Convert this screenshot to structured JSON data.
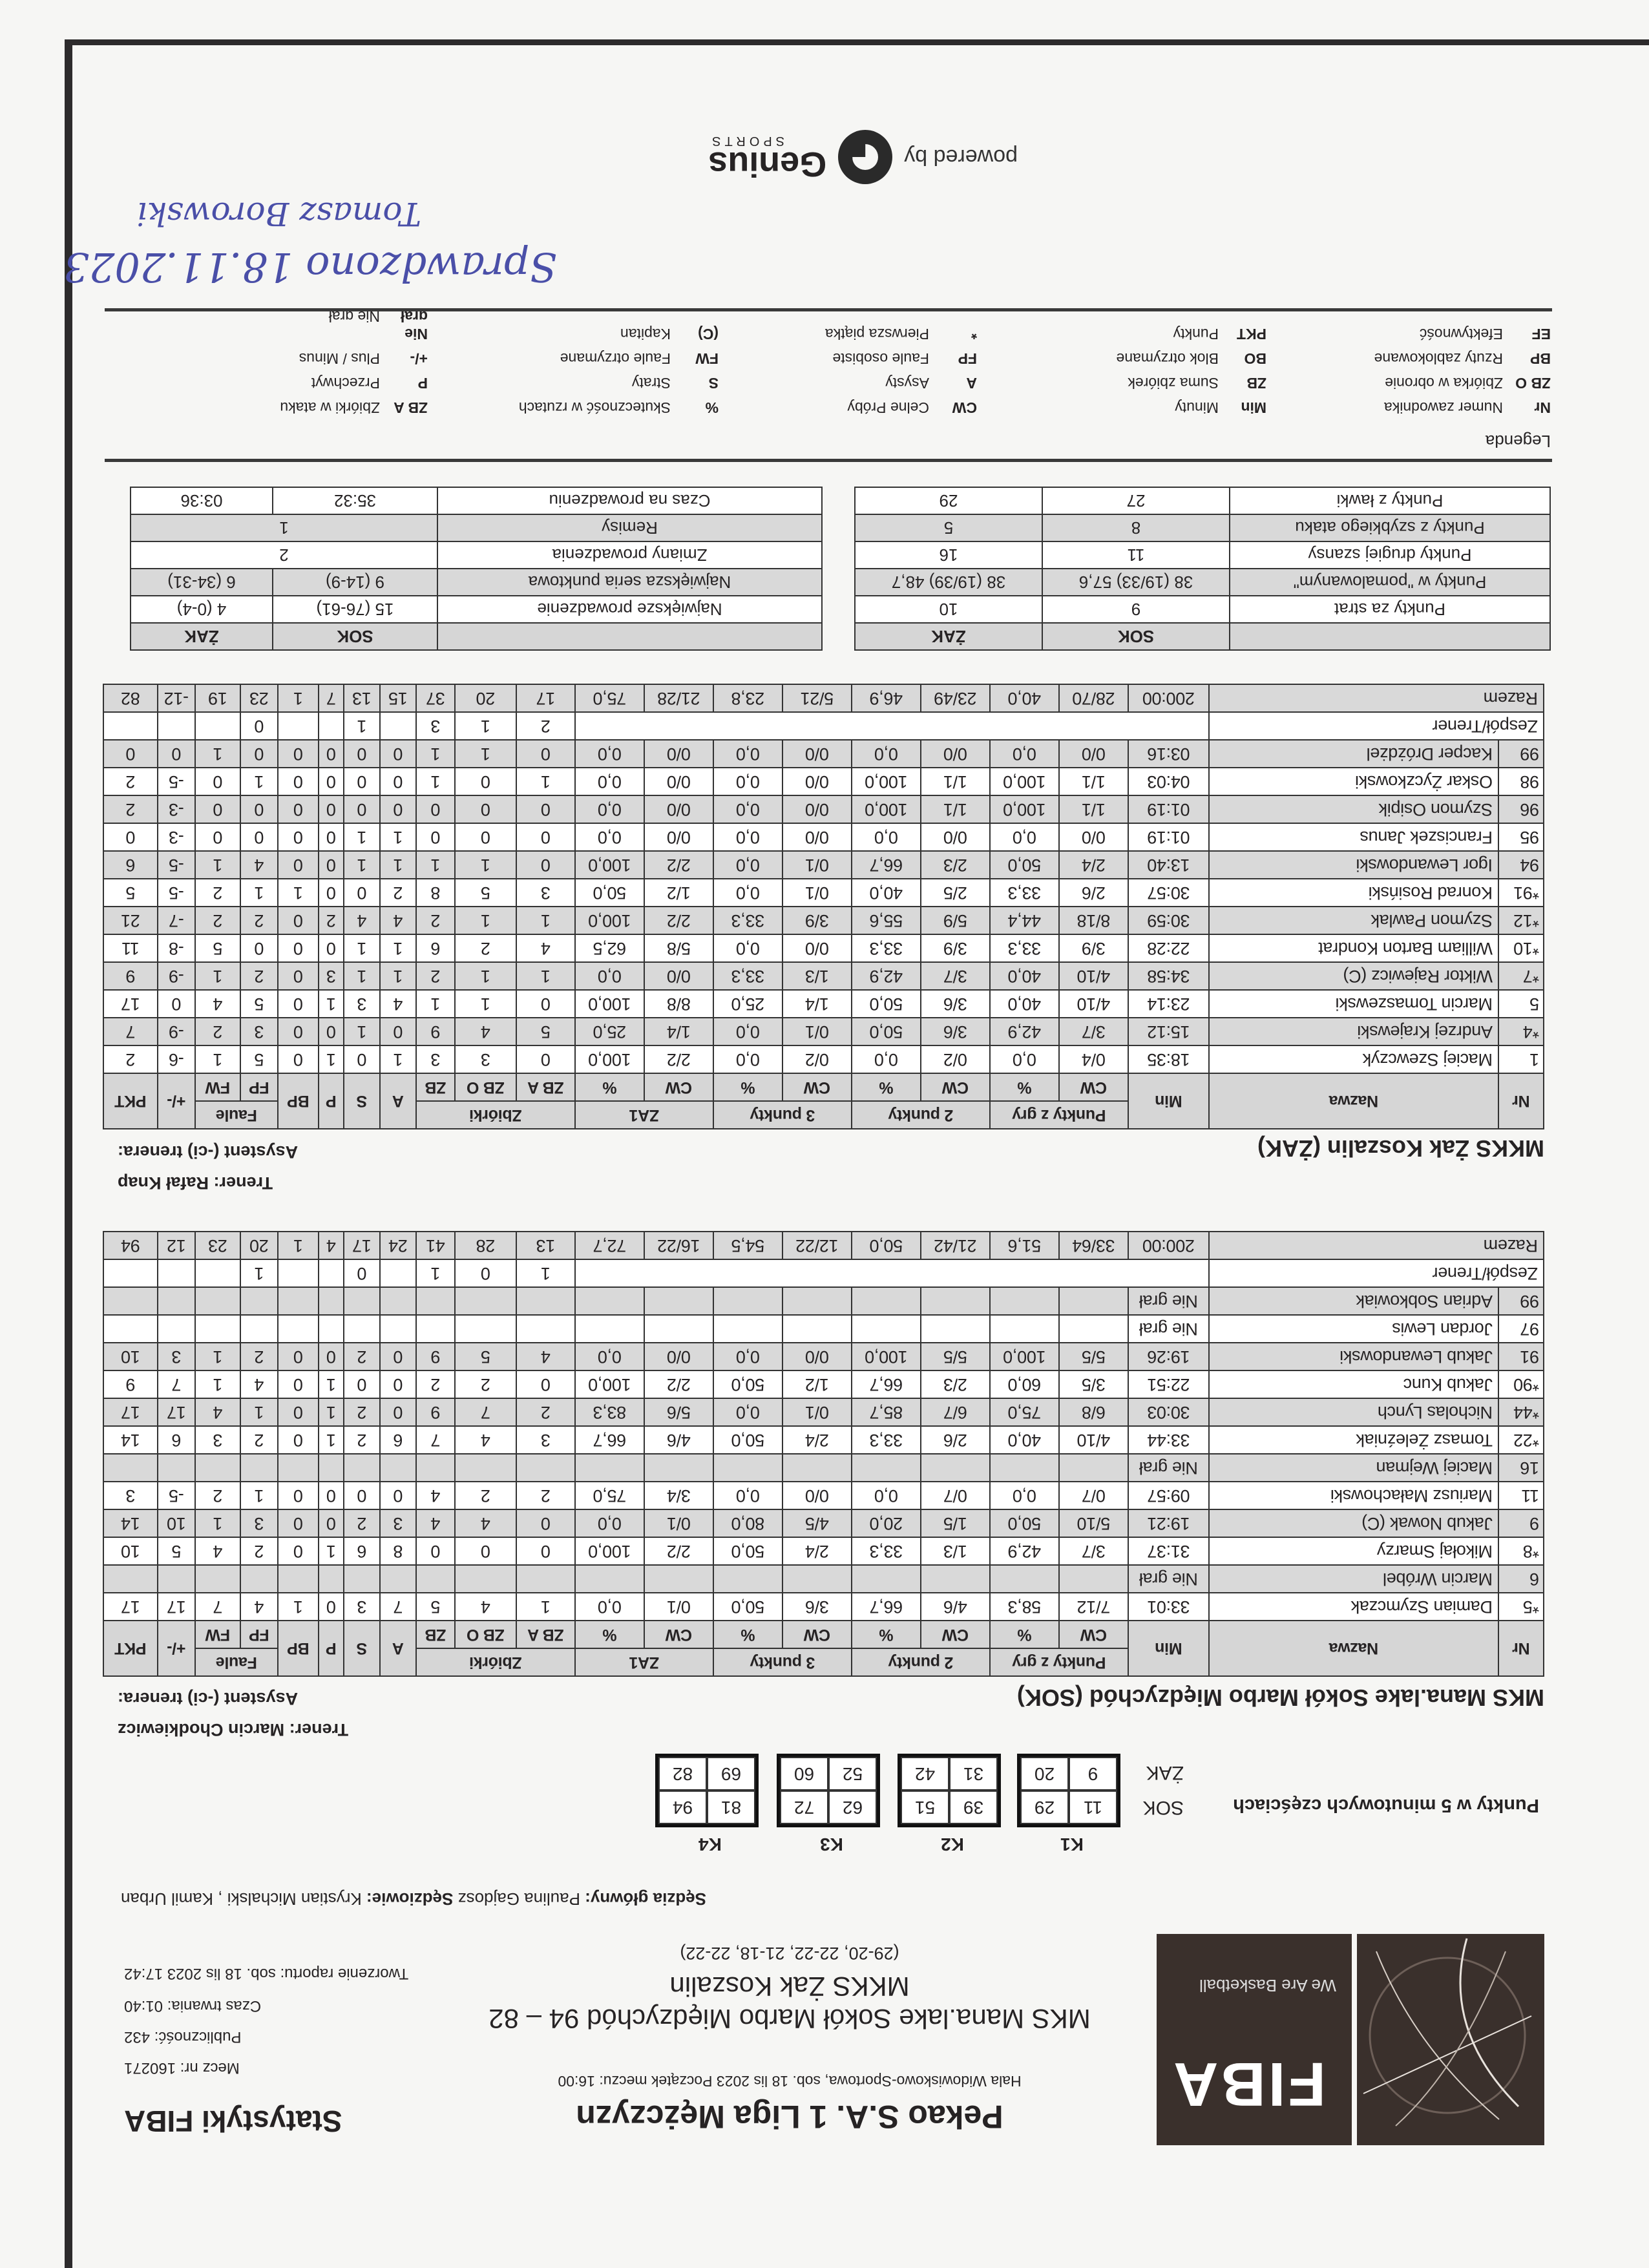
{
  "header": {
    "league": "Pekao S.A. 1 Liga Mężczyzn",
    "stats_title": "Statystyki FIBA",
    "venue_line": "Hala Widowiskowo-Sportowa, sob. 18 lis 2023 Początek meczu: 16:00",
    "match_no": "Mecz nr: 160271",
    "attendance": "Publiczność: 432",
    "duration": "Czas trwania: 01:40",
    "report_time": "Tworzenie raportu: sob. 18 lis 2023 17:42",
    "matchup": "MKS Mana.lake Sokół Marbo Międzychód 94 – 82",
    "away_team": "MKKS Żak Koszalin",
    "quarters": "(29-20, 22-22, 21-18, 22-22)",
    "logo": {
      "text": "FIBA",
      "tagline": "We Are Basketball",
      "color": "#3a302c"
    }
  },
  "officials": {
    "main_label": "Sędzia główny:",
    "main_name": "Paulina Gajdosz",
    "others_label": "Sędziowie:",
    "others_names": "Krystian Michalski , Kamil Urban"
  },
  "five_min": {
    "title": "Punkty w 5 minutowych częściach",
    "periods": [
      "K1",
      "K2",
      "K3",
      "K4"
    ],
    "teams": [
      {
        "code": "SOK",
        "values": [
          [
            "11",
            "29"
          ],
          [
            "39",
            "51"
          ],
          [
            "62",
            "72"
          ],
          [
            "81",
            "94"
          ]
        ]
      },
      {
        "code": "ŻAK",
        "values": [
          [
            "9",
            "20"
          ],
          [
            "31",
            "42"
          ],
          [
            "52",
            "60"
          ],
          [
            "69",
            "82"
          ]
        ]
      }
    ]
  },
  "columns": {
    "nr": "Nr",
    "name": "Nazwa",
    "min": "Min",
    "fg": "Punkty z gry",
    "p2": "2 punkty",
    "p3": "3 punkty",
    "ft": "ZA1",
    "reb": "Zbiórki",
    "fouls": "Faule",
    "cw": "CW",
    "pct": "%",
    "oreb": "ZB A",
    "dreb": "ZB O",
    "treb": "ZB",
    "ast": "A",
    "tov": "S",
    "stl": "P",
    "blk": "BP",
    "pf": "FP",
    "fd": "FW",
    "pm": "+/-",
    "pts": "PKT"
  },
  "teams": [
    {
      "name": "MKS Mana.lake Sokół Marbo Międzychód (SOK)",
      "coach_label": "Trener:",
      "coach": "Marcin Chodkiewicz",
      "assistant_label": "Asystent (-ci) trenera:",
      "players": [
        {
          "no": "*5",
          "name": "Damian Szymczak",
          "stats": [
            "33:01",
            "7/12",
            "58,3",
            "4/6",
            "66,7",
            "3/6",
            "50,0",
            "0/1",
            "0,0",
            "1",
            "4",
            "5",
            "7",
            "3",
            "0",
            "1",
            "4",
            "7",
            "17",
            "17"
          ]
        },
        {
          "no": "6",
          "name": "Marcin Wróbel",
          "dnp": "Nie grał"
        },
        {
          "no": "*8",
          "name": "Mikołaj Smarzy",
          "stats": [
            "31:37",
            "3/7",
            "42,9",
            "1/3",
            "33,3",
            "2/4",
            "50,0",
            "2/2",
            "100,0",
            "0",
            "0",
            "0",
            "8",
            "6",
            "1",
            "0",
            "2",
            "4",
            "5",
            "10"
          ]
        },
        {
          "no": "9",
          "name": "Jakub Nowak (C)",
          "stats": [
            "19:21",
            "5/10",
            "50,0",
            "1/5",
            "20,0",
            "4/5",
            "80,0",
            "0/1",
            "0,0",
            "0",
            "4",
            "4",
            "3",
            "2",
            "0",
            "0",
            "3",
            "1",
            "10",
            "14"
          ]
        },
        {
          "no": "11",
          "name": "Mariusz Małachowski",
          "stats": [
            "09:57",
            "0/7",
            "0,0",
            "0/7",
            "0,0",
            "0/0",
            "0,0",
            "3/4",
            "75,0",
            "2",
            "2",
            "4",
            "0",
            "0",
            "0",
            "0",
            "1",
            "2",
            "-5",
            "3"
          ]
        },
        {
          "no": "16",
          "name": "Maciej Wejman",
          "dnp": "Nie grał"
        },
        {
          "no": "*22",
          "name": "Tomasz Żeleźniak",
          "stats": [
            "33:44",
            "4/10",
            "40,0",
            "2/6",
            "33,3",
            "2/4",
            "50,0",
            "4/6",
            "66,7",
            "3",
            "4",
            "7",
            "6",
            "2",
            "1",
            "0",
            "2",
            "3",
            "6",
            "14"
          ]
        },
        {
          "no": "*44",
          "name": "Nicholas Lynch",
          "stats": [
            "30:03",
            "6/8",
            "75,0",
            "6/7",
            "85,7",
            "0/1",
            "0,0",
            "5/6",
            "83,3",
            "2",
            "7",
            "9",
            "0",
            "2",
            "1",
            "0",
            "1",
            "4",
            "17",
            "17"
          ]
        },
        {
          "no": "*90",
          "name": "Jakub Kunc",
          "stats": [
            "22:51",
            "3/5",
            "60,0",
            "2/3",
            "66,7",
            "1/2",
            "50,0",
            "2/2",
            "100,0",
            "0",
            "2",
            "2",
            "0",
            "0",
            "1",
            "0",
            "4",
            "1",
            "7",
            "9"
          ]
        },
        {
          "no": "91",
          "name": "Jakub Lewandowski",
          "stats": [
            "19:26",
            "5/5",
            "100,0",
            "5/5",
            "100,0",
            "0/0",
            "0,0",
            "0/0",
            "0,0",
            "4",
            "5",
            "9",
            "0",
            "2",
            "0",
            "0",
            "2",
            "1",
            "3",
            "10"
          ]
        },
        {
          "no": "97",
          "name": "Jordan Lewis",
          "dnp": "Nie grał"
        },
        {
          "no": "99",
          "name": "Adrian Sobkowiak",
          "dnp": "Nie grał"
        }
      ],
      "team_row": {
        "label": "Zespół/Trener",
        "stats": [
          "1",
          "0",
          "1",
          "",
          "0",
          "",
          "",
          "1",
          "",
          "",
          ""
        ]
      },
      "totals": {
        "label": "Razem",
        "stats": [
          "200:00",
          "33/64",
          "51,6",
          "21/42",
          "50,0",
          "12/22",
          "54,5",
          "16/22",
          "72,7",
          "13",
          "28",
          "41",
          "24",
          "17",
          "4",
          "1",
          "20",
          "23",
          "12",
          "94"
        ]
      }
    },
    {
      "name": "MKKS Żak Koszalin (ŻAK)",
      "coach_label": "Trener:",
      "coach": "Rafał Knap",
      "assistant_label": "Asystent (-ci) trenera:",
      "players": [
        {
          "no": "1",
          "name": "Maciej Szewczyk",
          "stats": [
            "18:35",
            "0/4",
            "0,0",
            "0/2",
            "0,0",
            "0/2",
            "0,0",
            "2/2",
            "100,0",
            "0",
            "3",
            "3",
            "1",
            "0",
            "1",
            "0",
            "5",
            "1",
            "-6",
            "2"
          ]
        },
        {
          "no": "*4",
          "name": "Andrzej Krajewski",
          "stats": [
            "15:12",
            "3/7",
            "42,9",
            "3/6",
            "50,0",
            "0/1",
            "0,0",
            "1/4",
            "25,0",
            "5",
            "4",
            "9",
            "0",
            "1",
            "0",
            "0",
            "3",
            "2",
            "-9",
            "7"
          ]
        },
        {
          "no": "5",
          "name": "Marcin Tomaszewski",
          "stats": [
            "23:14",
            "4/10",
            "40,0",
            "3/6",
            "50,0",
            "1/4",
            "25,0",
            "8/8",
            "100,0",
            "0",
            "1",
            "1",
            "4",
            "3",
            "1",
            "0",
            "5",
            "4",
            "0",
            "17"
          ]
        },
        {
          "no": "*7",
          "name": "Wiktor Rajewicz (C)",
          "stats": [
            "34:58",
            "4/10",
            "40,0",
            "3/7",
            "42,9",
            "1/3",
            "33,3",
            "0/0",
            "0,0",
            "1",
            "1",
            "2",
            "1",
            "1",
            "3",
            "0",
            "2",
            "1",
            "-9",
            "9"
          ]
        },
        {
          "no": "*10",
          "name": "William Barton Kondrat",
          "stats": [
            "22:28",
            "3/9",
            "33,3",
            "3/9",
            "33,3",
            "0/0",
            "0,0",
            "5/8",
            "62,5",
            "4",
            "2",
            "6",
            "1",
            "1",
            "0",
            "0",
            "0",
            "5",
            "-8",
            "11"
          ]
        },
        {
          "no": "*12",
          "name": "Szymon Pawlak",
          "stats": [
            "30:59",
            "8/18",
            "44,4",
            "5/9",
            "55,6",
            "3/9",
            "33,3",
            "2/2",
            "100,0",
            "1",
            "1",
            "2",
            "4",
            "4",
            "2",
            "0",
            "2",
            "2",
            "-7",
            "21"
          ]
        },
        {
          "no": "*91",
          "name": "Konrad Rosiński",
          "stats": [
            "30:57",
            "2/6",
            "33,3",
            "2/5",
            "40,0",
            "0/1",
            "0,0",
            "1/2",
            "50,0",
            "3",
            "5",
            "8",
            "2",
            "0",
            "0",
            "1",
            "1",
            "2",
            "-5",
            "5"
          ]
        },
        {
          "no": "94",
          "name": "Igor Lewandowski",
          "stats": [
            "13:40",
            "2/4",
            "50,0",
            "2/3",
            "66,7",
            "0/1",
            "0,0",
            "2/2",
            "100,0",
            "0",
            "1",
            "1",
            "1",
            "1",
            "0",
            "0",
            "4",
            "1",
            "-5",
            "6"
          ]
        },
        {
          "no": "95",
          "name": "Franciszek Janus",
          "stats": [
            "01:19",
            "0/0",
            "0,0",
            "0/0",
            "0,0",
            "0/0",
            "0,0",
            "0/0",
            "0,0",
            "0",
            "0",
            "0",
            "1",
            "1",
            "0",
            "0",
            "0",
            "0",
            "-3",
            "0"
          ]
        },
        {
          "no": "96",
          "name": "Szymon Osipik",
          "stats": [
            "01:19",
            "1/1",
            "100,0",
            "1/1",
            "100,0",
            "0/0",
            "0,0",
            "0/0",
            "0,0",
            "0",
            "0",
            "0",
            "0",
            "0",
            "0",
            "0",
            "0",
            "0",
            "-3",
            "2"
          ]
        },
        {
          "no": "98",
          "name": "Oskar Życzkowski",
          "stats": [
            "04:03",
            "1/1",
            "100,0",
            "1/1",
            "100,0",
            "0/0",
            "0,0",
            "0/0",
            "0,0",
            "1",
            "0",
            "1",
            "0",
            "0",
            "0",
            "0",
            "1",
            "0",
            "-5",
            "2"
          ]
        },
        {
          "no": "99",
          "name": "Kacper Dróżdżel",
          "stats": [
            "03:16",
            "0/0",
            "0,0",
            "0/0",
            "0,0",
            "0/0",
            "0,0",
            "0/0",
            "0,0",
            "0",
            "1",
            "1",
            "0",
            "0",
            "0",
            "0",
            "0",
            "1",
            "0",
            "0"
          ]
        }
      ],
      "team_row": {
        "label": "Zespół/Trener",
        "stats": [
          "2",
          "1",
          "3",
          "",
          "1",
          "",
          "",
          "0",
          "",
          "",
          ""
        ]
      },
      "totals": {
        "label": "Razem",
        "stats": [
          "200:00",
          "28/70",
          "40,0",
          "23/49",
          "46,9",
          "5/21",
          "23,8",
          "21/28",
          "75,0",
          "17",
          "20",
          "37",
          "15",
          "13",
          "7",
          "1",
          "23",
          "19",
          "-12",
          "82"
        ]
      }
    }
  ],
  "team_stats": {
    "codes": [
      "SOK",
      "ŻAK"
    ],
    "left": [
      {
        "label": "Punkty za strat",
        "values": [
          "9",
          "10"
        ]
      },
      {
        "label": "Punkty w \"pomalowanym\"",
        "values": [
          "38 (19/33) 57,6",
          "38 (19/39) 48,7"
        ]
      },
      {
        "label": "Punkty drugiej szansy",
        "values": [
          "11",
          "16"
        ]
      },
      {
        "label": "Punkty z szybkiego ataku",
        "values": [
          "8",
          "5"
        ]
      },
      {
        "label": "Punkty z ławki",
        "values": [
          "27",
          "29"
        ]
      }
    ],
    "right": [
      {
        "label": "Największe prowadzenie",
        "values": [
          "15 (76-61)",
          "4 (0-4)"
        ]
      },
      {
        "label": "Największa seria punktowa",
        "values": [
          "9 (14-9)",
          "6 (34-31)"
        ]
      },
      {
        "label": "Zmiany prowadzenia",
        "shared": "2"
      },
      {
        "label": "Remisy",
        "shared": "1"
      },
      {
        "label": "Czas na prowadzeniu",
        "values": [
          "35:32",
          "03:36"
        ]
      }
    ]
  },
  "legend": {
    "title": "Legenda",
    "items": [
      {
        "abbr": "Nr",
        "desc": "Numer zawodnika"
      },
      {
        "abbr": "Min",
        "desc": "Minuty"
      },
      {
        "abbr": "CW",
        "desc": "Celne Próby"
      },
      {
        "abbr": "%",
        "desc": "Skuteczność w rzutach"
      },
      {
        "abbr": "ZB A",
        "desc": "Zbiórki w ataku"
      },
      {
        "abbr": "ZB O",
        "desc": "Zbiórka w obronie"
      },
      {
        "abbr": "ZB",
        "desc": "Suma zbiórek"
      },
      {
        "abbr": "A",
        "desc": "Asysty"
      },
      {
        "abbr": "S",
        "desc": "Straty"
      },
      {
        "abbr": "P",
        "desc": "Przechwyt"
      },
      {
        "abbr": "BP",
        "desc": "Rzuty zablokowane"
      },
      {
        "abbr": "BO",
        "desc": "Blok otrzymane"
      },
      {
        "abbr": "FP",
        "desc": "Faule osobiste"
      },
      {
        "abbr": "FW",
        "desc": "Faule otrzymane"
      },
      {
        "abbr": "+/-",
        "desc": "Plus / Minus"
      },
      {
        "abbr": "EF",
        "desc": "Efektywność"
      },
      {
        "abbr": "PKT",
        "desc": "Punkty"
      },
      {
        "abbr": "*",
        "desc": "Pierwsza piątka"
      },
      {
        "abbr": "(C)",
        "desc": "Kapitan"
      },
      {
        "abbr": "Nie grał",
        "desc": "Nie grał"
      }
    ]
  },
  "handwritten": {
    "note": "Sprawdzono 18.11.2023",
    "signature": "Tomasz Borowski",
    "ink_color": "#4a4fa8"
  },
  "footer": {
    "powered_by": "powered by",
    "brand": "Genius",
    "brand_sub": "SPORTS"
  }
}
